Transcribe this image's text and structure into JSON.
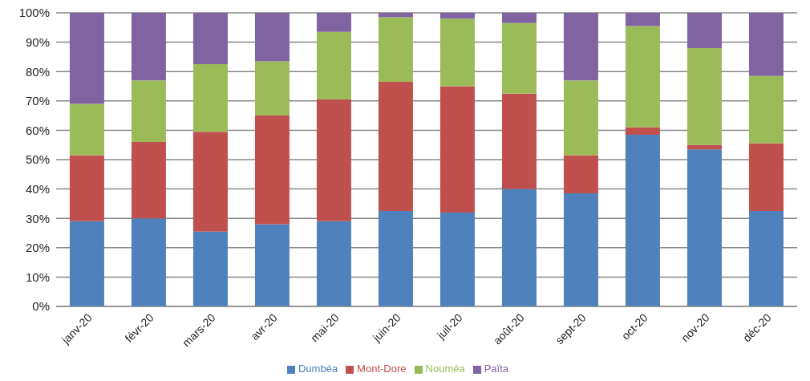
{
  "chart_data": {
    "type": "bar",
    "stacked": true,
    "categories": [
      "janv-20",
      "févr-20",
      "mars-20",
      "avr-20",
      "mai-20",
      "juin-20",
      "juil-20",
      "août-20",
      "sept-20",
      "oct-20",
      "nov-20",
      "déc-20"
    ],
    "series": [
      {
        "name": "Dumbéa",
        "color": "#4f81bd",
        "values": [
          29,
          30,
          25.5,
          28,
          29,
          32.5,
          32,
          40,
          38.5,
          58.5,
          53.5,
          32.5
        ]
      },
      {
        "name": "Mont-Dore",
        "color": "#c0504d",
        "values": [
          22.5,
          26,
          34,
          37,
          41.5,
          44,
          43,
          32.5,
          13,
          2.5,
          1.5,
          23
        ]
      },
      {
        "name": "Nouméa",
        "color": "#9bbb59",
        "values": [
          17.5,
          21,
          23,
          18.5,
          23,
          22,
          23,
          24,
          25.5,
          34.5,
          33,
          23
        ]
      },
      {
        "name": "Païta",
        "color": "#8064a2",
        "values": [
          31,
          23,
          17.5,
          16.5,
          6.5,
          1.5,
          2,
          3.5,
          23,
          4.5,
          12,
          21.5
        ]
      }
    ],
    "ylim": [
      0,
      100
    ],
    "yticks": [
      {
        "value": 0,
        "label": "0%"
      },
      {
        "value": 10,
        "label": "10%"
      },
      {
        "value": 20,
        "label": "20%"
      },
      {
        "value": 30,
        "label": "30%"
      },
      {
        "value": 40,
        "label": "40%"
      },
      {
        "value": 50,
        "label": "50%"
      },
      {
        "value": 60,
        "label": "60%"
      },
      {
        "value": 70,
        "label": "70%"
      },
      {
        "value": 80,
        "label": "80%"
      },
      {
        "value": 90,
        "label": "90%"
      },
      {
        "value": 100,
        "label": "100%"
      }
    ],
    "grid": "y",
    "legend": "bottom"
  }
}
